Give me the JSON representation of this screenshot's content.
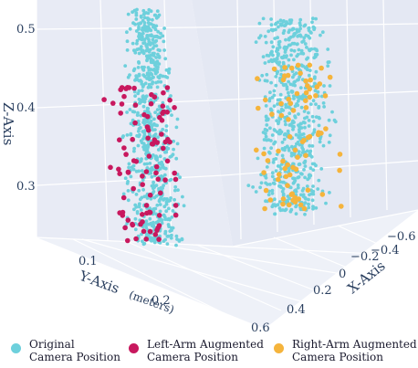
{
  "chart_data": {
    "type": "scatter3d",
    "axes": {
      "x": {
        "title": "X-Axis",
        "ticks": [
          -0.6,
          -0.4,
          -0.2,
          0,
          0.2,
          0.4,
          0.6
        ],
        "tick_labels": [
          "−0.6",
          "−0.4",
          "−0.2",
          "0",
          "0.2",
          "0.4",
          "0.6"
        ]
      },
      "y": {
        "title": "Y-Axis",
        "title_unit": "(meters)",
        "ticks": [
          0.1,
          0.2
        ],
        "tick_labels": [
          "0.1",
          "0.2"
        ]
      },
      "z": {
        "title": "Z-Axis",
        "ticks": [
          0.3,
          0.4,
          0.5
        ],
        "tick_labels": [
          "0.3",
          "0.4",
          "0.5"
        ]
      }
    },
    "grid": true,
    "legend_position": "bottom",
    "series": [
      {
        "name_line1": "Original",
        "name_line2": "Camera Position",
        "color": "#6dd0dc"
      },
      {
        "name_line1": "Left-Arm Augmented",
        "name_line2": "Camera Position",
        "color": "#c8185e"
      },
      {
        "name_line1": "Right-Arm Augmented",
        "name_line2": "Camera Position",
        "color": "#f5b43c"
      }
    ]
  }
}
